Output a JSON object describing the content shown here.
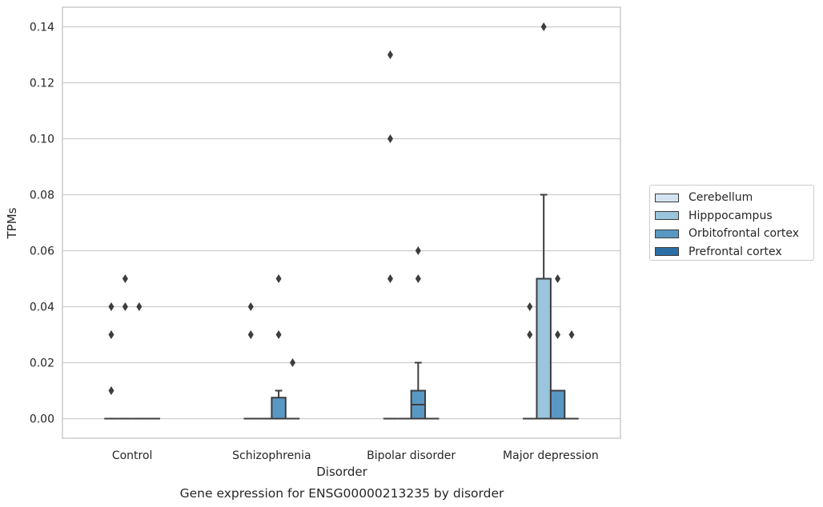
{
  "chart_data": {
    "type": "box",
    "xlabel": "Disorder",
    "ylabel": "TPMs",
    "caption": "Gene expression for ENSG00000213235 by disorder",
    "ylim": [
      -0.007,
      0.147
    ],
    "yticks": [
      "0.00",
      "0.02",
      "0.04",
      "0.06",
      "0.08",
      "0.10",
      "0.12",
      "0.14"
    ],
    "grid": true,
    "legend_position": "right",
    "categories": [
      "Control",
      "Schizophrenia",
      "Bipolar disorder",
      "Major depression"
    ],
    "series": [
      {
        "name": "Cerebellum",
        "color": "#d3e3f2",
        "boxes": [
          {
            "q1": 0,
            "median": 0,
            "q3": 0,
            "whisker_low": 0,
            "whisker_high": 0,
            "outliers": [
              0.03,
              0.04,
              0.01
            ]
          },
          {
            "q1": 0,
            "median": 0,
            "q3": 0,
            "whisker_low": 0,
            "whisker_high": 0,
            "outliers": [
              0.03,
              0.04
            ]
          },
          {
            "q1": 0,
            "median": 0,
            "q3": 0,
            "whisker_low": 0,
            "whisker_high": 0,
            "outliers": [
              0.05,
              0.1,
              0.13
            ]
          },
          {
            "q1": 0,
            "median": 0,
            "q3": 0,
            "whisker_low": 0,
            "whisker_high": 0,
            "outliers": [
              0.03,
              0.04
            ]
          }
        ]
      },
      {
        "name": "Hipppocampus",
        "color": "#9ac5dd",
        "boxes": [
          {
            "q1": 0,
            "median": 0,
            "q3": 0,
            "whisker_low": 0,
            "whisker_high": 0,
            "outliers": [
              0.04,
              0.05
            ]
          },
          {
            "q1": 0,
            "median": 0,
            "q3": 0,
            "whisker_low": 0,
            "whisker_high": 0,
            "outliers": []
          },
          {
            "q1": 0,
            "median": 0,
            "q3": 0,
            "whisker_low": 0,
            "whisker_high": 0,
            "outliers": []
          },
          {
            "q1": 0,
            "median": 0,
            "q3": 0.05,
            "whisker_low": 0,
            "whisker_high": 0.08,
            "outliers": [
              0.14
            ]
          }
        ]
      },
      {
        "name": "Orbitofrontal cortex",
        "color": "#5a98c4",
        "boxes": [
          {
            "q1": 0,
            "median": 0,
            "q3": 0,
            "whisker_low": 0,
            "whisker_high": 0,
            "outliers": [
              0.04
            ]
          },
          {
            "q1": 0,
            "median": 0,
            "q3": 0.0075,
            "whisker_low": 0,
            "whisker_high": 0.01,
            "outliers": [
              0.03,
              0.05
            ]
          },
          {
            "q1": 0,
            "median": 0.005,
            "q3": 0.01,
            "whisker_low": 0,
            "whisker_high": 0.02,
            "outliers": [
              0.05,
              0.06
            ]
          },
          {
            "q1": 0,
            "median": 0,
            "q3": 0.01,
            "whisker_low": 0,
            "whisker_high": 0.01,
            "outliers": [
              0.03,
              0.05
            ]
          }
        ]
      },
      {
        "name": "Prefrontal cortex",
        "color": "#2b6ea6",
        "boxes": [
          {
            "q1": 0,
            "median": 0,
            "q3": 0,
            "whisker_low": 0,
            "whisker_high": 0,
            "outliers": []
          },
          {
            "q1": 0,
            "median": 0,
            "q3": 0,
            "whisker_low": 0,
            "whisker_high": 0,
            "outliers": [
              0.02
            ]
          },
          {
            "q1": 0,
            "median": 0,
            "q3": 0,
            "whisker_low": 0,
            "whisker_high": 0,
            "outliers": []
          },
          {
            "q1": 0,
            "median": 0,
            "q3": 0,
            "whisker_low": 0,
            "whisker_high": 0,
            "outliers": [
              0.03
            ]
          }
        ]
      }
    ]
  }
}
